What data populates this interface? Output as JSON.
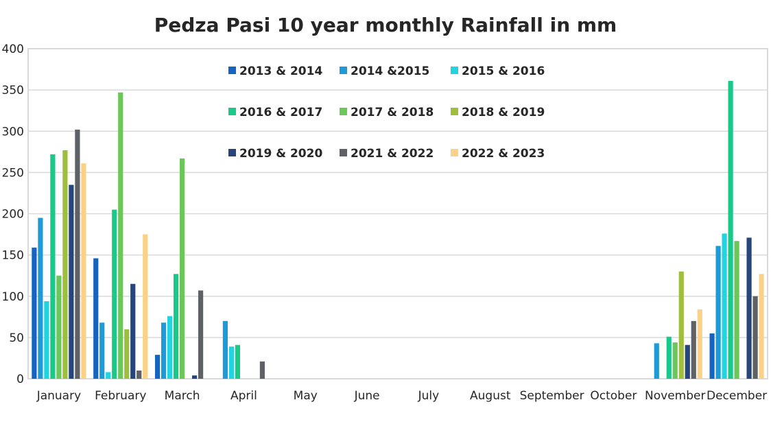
{
  "chart_data": {
    "type": "bar",
    "title": "Pedza Pasi 10 year monthly Rainfall in mm",
    "xlabel": "",
    "ylabel": "",
    "ylim": [
      0,
      400
    ],
    "yticks": [
      "0",
      "50",
      "100",
      "150",
      "200",
      "250",
      "300",
      "350",
      "400"
    ],
    "grid": true,
    "legend_position": "top-center",
    "categories": [
      "January",
      "February",
      "March",
      "April",
      "May",
      "June",
      "July",
      "August",
      "September",
      "October",
      "November",
      "December"
    ],
    "series": [
      {
        "name": "2013 & 2014",
        "color": "#1565C0",
        "values": [
          159,
          146,
          29,
          0,
          0,
          0,
          0,
          0,
          0,
          0,
          0,
          55
        ]
      },
      {
        "name": "2014 &2015",
        "color": "#1E9AD6",
        "values": [
          195,
          68,
          68,
          70,
          0,
          0,
          0,
          0,
          0,
          0,
          43,
          161
        ]
      },
      {
        "name": "2015 & 2016",
        "color": "#22D3E0",
        "values": [
          94,
          8,
          76,
          39,
          0,
          0,
          0,
          0,
          0,
          0,
          0,
          176
        ]
      },
      {
        "name": "2016 & 2017",
        "color": "#19C98A",
        "values": [
          272,
          205,
          127,
          41,
          0,
          0,
          0,
          0,
          0,
          0,
          51,
          361
        ]
      },
      {
        "name": "2017 & 2018",
        "color": "#6CC65A",
        "values": [
          125,
          347,
          267,
          0,
          0,
          0,
          0,
          0,
          0,
          0,
          44,
          167
        ]
      },
      {
        "name": "2018 & 2019",
        "color": "#9DBF3C",
        "values": [
          277,
          60,
          0,
          0,
          0,
          0,
          0,
          0,
          0,
          0,
          130,
          0
        ]
      },
      {
        "name": "2019 & 2020",
        "color": "#26457A",
        "values": [
          235,
          115,
          4,
          0,
          0,
          0,
          0,
          0,
          0,
          0,
          41,
          171
        ]
      },
      {
        "name": "2021 & 2022",
        "color": "#5E6166",
        "values": [
          302,
          10,
          107,
          21,
          0,
          0,
          0,
          0,
          0,
          0,
          70,
          100
        ]
      },
      {
        "name": "2022 & 2023",
        "color": "#FAD287",
        "values": [
          261,
          175,
          0,
          0,
          0,
          0,
          0,
          0,
          0,
          0,
          84,
          127
        ]
      }
    ]
  }
}
